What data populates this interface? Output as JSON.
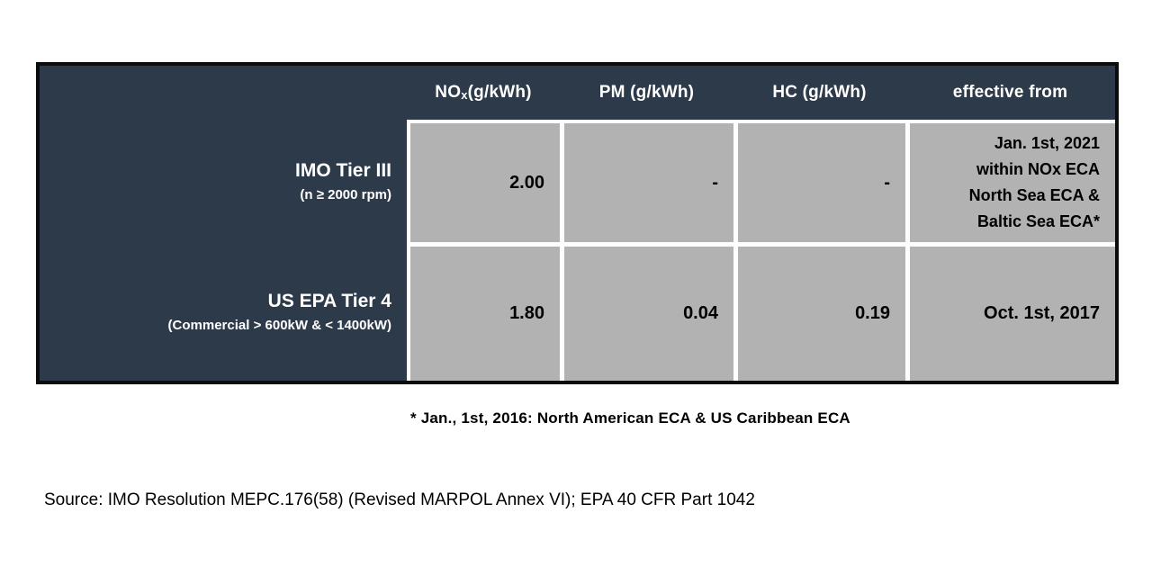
{
  "chart_data": {
    "type": "table",
    "columns": [
      "",
      "NOx (g/kWh)",
      "PM (g/kWh)",
      "HC (g/kWh)",
      "effective from"
    ],
    "rows": [
      [
        "IMO Tier III (n ≥ 2000 rpm)",
        "2.00",
        "-",
        "-",
        "Jan. 1st, 2021 within NOx ECA North Sea ECA & Baltic Sea ECA*"
      ],
      [
        "US EPA Tier 4 (Commercial > 600kW & < 1400kW)",
        "1.80",
        "0.04",
        "0.19",
        "Oct. 1st, 2017"
      ]
    ],
    "footnote": "* Jan., 1st, 2016: North American ECA & US Caribbean ECA",
    "source": "Source: IMO Resolution MEPC.176(58) (Revised MARPOL Annex VI); EPA 40 CFR Part 1042"
  },
  "table": {
    "headers": {
      "nox": {
        "prefix": "NO",
        "sub": "x",
        "suffix": " (g/kWh)"
      },
      "pm": "PM (g/kWh)",
      "hc": "HC (g/kWh)",
      "effective": "effective from"
    },
    "rows": [
      {
        "label": "IMO Tier III",
        "sublabel": "(n ≥ 2000 rpm)",
        "nox": "2.00",
        "pm": "-",
        "hc": "-",
        "effective_lines": [
          "Jan. 1st, 2021",
          "within NOx ECA",
          "North Sea ECA &",
          "Baltic Sea ECA*"
        ]
      },
      {
        "label": "US EPA Tier 4",
        "sublabel": "(Commercial > 600kW & < 1400kW)",
        "nox": "1.80",
        "pm": "0.04",
        "hc": "0.19",
        "effective": "Oct. 1st, 2017"
      }
    ]
  },
  "footnote": "* Jan., 1st, 2016: North American ECA & US Caribbean ECA",
  "source_line": "Source: IMO Resolution MEPC.176(58) (Revised MARPOL Annex VI); EPA 40 CFR Part 1042",
  "colors": {
    "header_bg": "#2d3a49",
    "cell_bg": "#b2b2b2",
    "table_border": "#0c0c0c",
    "cell_gap": "#ffffff",
    "header_text": "#ffffff",
    "cell_text": "#000000"
  }
}
